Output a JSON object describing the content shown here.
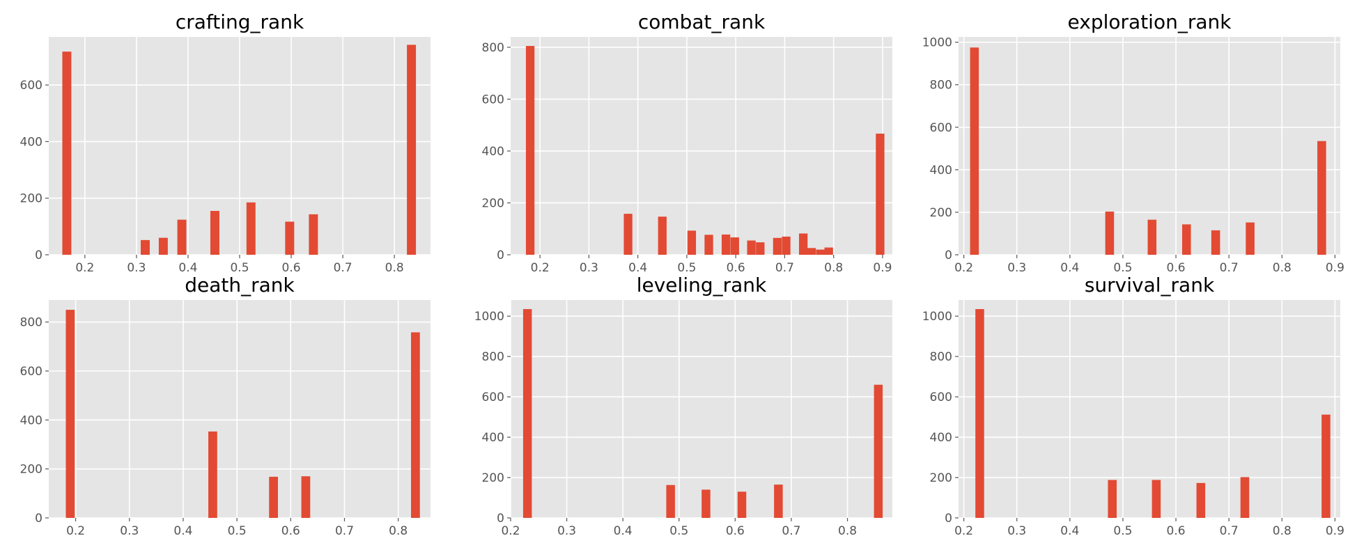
{
  "figure": {
    "background": "#ffffff"
  },
  "style": {
    "plot_bg": "#e5e5e5",
    "grid": "#ffffff",
    "bar_color": "#e24a33",
    "tick_color": "#555555"
  },
  "chart_data": [
    {
      "type": "bar",
      "title": "crafting_rank",
      "xlim": [
        0.13,
        0.87
      ],
      "ylim": [
        0,
        770
      ],
      "xticks": [
        0.2,
        0.3,
        0.4,
        0.5,
        0.6,
        0.7,
        0.8
      ],
      "yticks": [
        0,
        200,
        400,
        600
      ],
      "grid": true,
      "bin_width": 0.0175,
      "bars": [
        {
          "x": 0.165,
          "value": 718
        },
        {
          "x": 0.317,
          "value": 52
        },
        {
          "x": 0.352,
          "value": 60
        },
        {
          "x": 0.388,
          "value": 124
        },
        {
          "x": 0.452,
          "value": 155
        },
        {
          "x": 0.522,
          "value": 185
        },
        {
          "x": 0.597,
          "value": 117
        },
        {
          "x": 0.643,
          "value": 143
        },
        {
          "x": 0.833,
          "value": 742
        }
      ]
    },
    {
      "type": "bar",
      "title": "combat_rank",
      "xlim": [
        0.14,
        0.92
      ],
      "ylim": [
        0,
        840
      ],
      "xticks": [
        0.2,
        0.3,
        0.4,
        0.5,
        0.6,
        0.7,
        0.8,
        0.9
      ],
      "yticks": [
        0,
        200,
        400,
        600,
        800
      ],
      "grid": true,
      "bin_width": 0.0175,
      "bars": [
        {
          "x": 0.18,
          "value": 805
        },
        {
          "x": 0.38,
          "value": 158
        },
        {
          "x": 0.45,
          "value": 147
        },
        {
          "x": 0.51,
          "value": 93
        },
        {
          "x": 0.545,
          "value": 77
        },
        {
          "x": 0.58,
          "value": 78
        },
        {
          "x": 0.598,
          "value": 67
        },
        {
          "x": 0.632,
          "value": 55
        },
        {
          "x": 0.65,
          "value": 48
        },
        {
          "x": 0.685,
          "value": 65
        },
        {
          "x": 0.703,
          "value": 70
        },
        {
          "x": 0.738,
          "value": 82
        },
        {
          "x": 0.755,
          "value": 26
        },
        {
          "x": 0.773,
          "value": 20
        },
        {
          "x": 0.79,
          "value": 28
        },
        {
          "x": 0.895,
          "value": 467
        }
      ]
    },
    {
      "type": "bar",
      "title": "exploration_rank",
      "xlim": [
        0.19,
        0.91
      ],
      "ylim": [
        0,
        1025
      ],
      "xticks": [
        0.2,
        0.3,
        0.4,
        0.5,
        0.6,
        0.7,
        0.8,
        0.9
      ],
      "yticks": [
        0,
        200,
        400,
        600,
        800,
        1000
      ],
      "grid": true,
      "bin_width": 0.0165,
      "bars": [
        {
          "x": 0.22,
          "value": 975
        },
        {
          "x": 0.475,
          "value": 203
        },
        {
          "x": 0.555,
          "value": 165
        },
        {
          "x": 0.62,
          "value": 143
        },
        {
          "x": 0.675,
          "value": 115
        },
        {
          "x": 0.74,
          "value": 152
        },
        {
          "x": 0.875,
          "value": 535
        }
      ]
    },
    {
      "type": "bar",
      "title": "death_rank",
      "xlim": [
        0.15,
        0.86
      ],
      "ylim": [
        0,
        890
      ],
      "xticks": [
        0.2,
        0.3,
        0.4,
        0.5,
        0.6,
        0.7,
        0.8
      ],
      "yticks": [
        0,
        200,
        400,
        600,
        800
      ],
      "grid": true,
      "bin_width": 0.0165,
      "bars": [
        {
          "x": 0.19,
          "value": 850
        },
        {
          "x": 0.455,
          "value": 353
        },
        {
          "x": 0.568,
          "value": 168
        },
        {
          "x": 0.628,
          "value": 170
        },
        {
          "x": 0.832,
          "value": 758
        }
      ]
    },
    {
      "type": "bar",
      "title": "leveling_rank",
      "xlim": [
        0.2,
        0.88
      ],
      "ylim": [
        0,
        1080
      ],
      "xticks": [
        0.2,
        0.3,
        0.4,
        0.5,
        0.6,
        0.7,
        0.8
      ],
      "yticks": [
        0,
        200,
        400,
        600,
        800,
        1000
      ],
      "grid": true,
      "bin_width": 0.0155,
      "bars": [
        {
          "x": 0.23,
          "value": 1035
        },
        {
          "x": 0.485,
          "value": 163
        },
        {
          "x": 0.548,
          "value": 140
        },
        {
          "x": 0.612,
          "value": 130
        },
        {
          "x": 0.677,
          "value": 165
        },
        {
          "x": 0.855,
          "value": 660
        }
      ]
    },
    {
      "type": "bar",
      "title": "survival_rank",
      "xlim": [
        0.19,
        0.91
      ],
      "ylim": [
        0,
        1080
      ],
      "xticks": [
        0.2,
        0.3,
        0.4,
        0.5,
        0.6,
        0.7,
        0.8,
        0.9
      ],
      "yticks": [
        0,
        200,
        400,
        600,
        800,
        1000
      ],
      "grid": true,
      "bin_width": 0.0165,
      "bars": [
        {
          "x": 0.23,
          "value": 1035
        },
        {
          "x": 0.48,
          "value": 188
        },
        {
          "x": 0.563,
          "value": 188
        },
        {
          "x": 0.647,
          "value": 173
        },
        {
          "x": 0.73,
          "value": 202
        },
        {
          "x": 0.883,
          "value": 512
        }
      ]
    }
  ]
}
